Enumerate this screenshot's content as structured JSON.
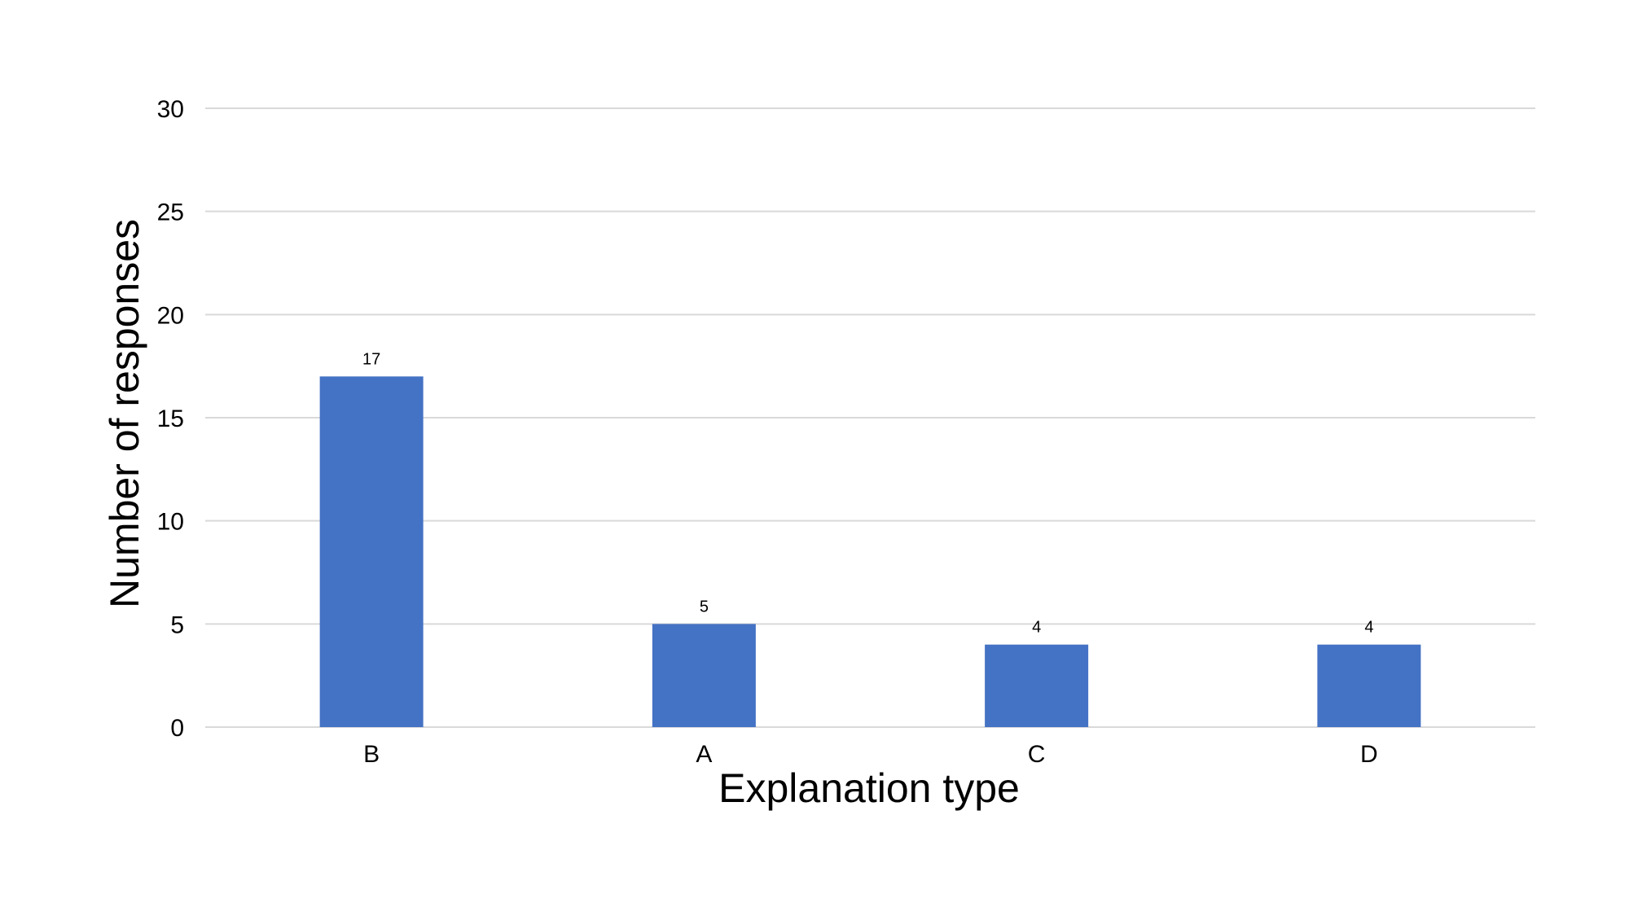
{
  "chart_data": {
    "type": "bar",
    "title": "",
    "xlabel": "Explanation type",
    "ylabel": "Number of responses",
    "categories": [
      "B",
      "A",
      "C",
      "D"
    ],
    "values": [
      17,
      5,
      4,
      4
    ],
    "data_labels": [
      "17",
      "5",
      "4",
      "4"
    ],
    "ylim": [
      0,
      30
    ],
    "yticks": [
      0,
      5,
      10,
      15,
      20,
      25,
      30
    ],
    "grid": true,
    "legend": "none",
    "bar_color": "#4472c4",
    "grid_color": "#d9d9d9"
  }
}
